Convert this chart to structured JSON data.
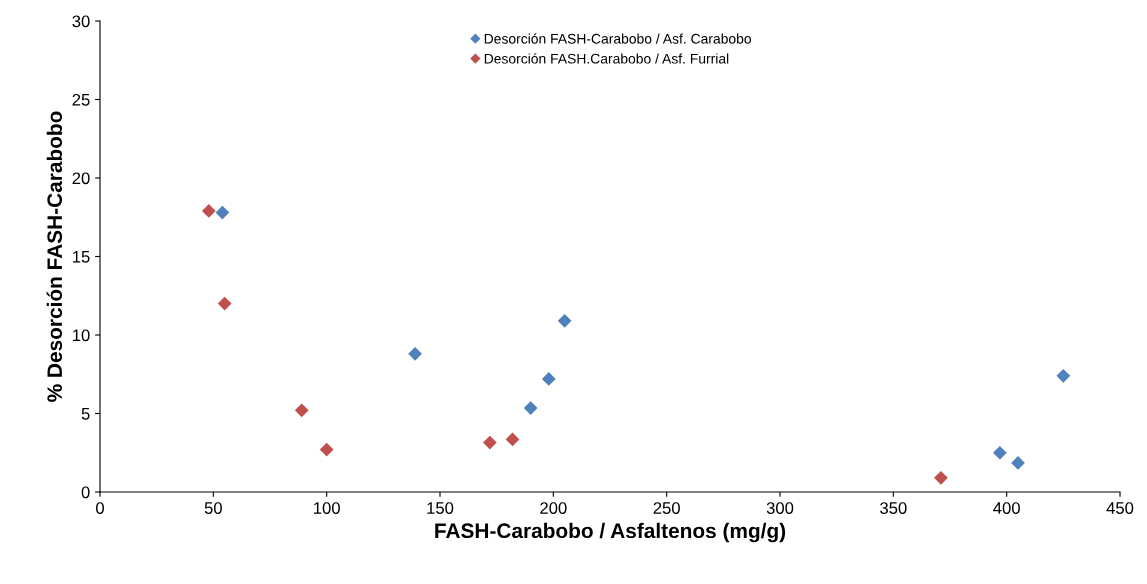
{
  "chart_data": {
    "type": "scatter",
    "xlabel": "FASH-Carabobo / Asfaltenos (mg/g)",
    "ylabel": "% Desorción FASH-Carabobo",
    "xlim": [
      0,
      450
    ],
    "xticks": [
      0,
      50,
      100,
      150,
      200,
      250,
      300,
      350,
      400,
      450
    ],
    "ylim": [
      0,
      30
    ],
    "yticks": [
      0,
      5,
      10,
      15,
      20,
      25,
      30
    ],
    "grid": false,
    "legend": "top",
    "marker": "diamond",
    "series": [
      {
        "name": "Desorción FASH-Carabobo / Asf. Carabobo",
        "color": "#4f81bd",
        "x": [
          54,
          139,
          190,
          198,
          205,
          397,
          405,
          425
        ],
        "values": [
          17.8,
          8.8,
          5.35,
          7.2,
          10.9,
          2.5,
          1.85,
          7.4
        ]
      },
      {
        "name": "Desorción FASH.Carabobo / Asf. Furrial",
        "color": "#c0504d",
        "x": [
          48,
          55,
          89,
          100,
          172,
          182,
          371
        ],
        "values": [
          17.9,
          12.0,
          5.2,
          2.7,
          3.15,
          3.35,
          0.9
        ]
      }
    ]
  }
}
